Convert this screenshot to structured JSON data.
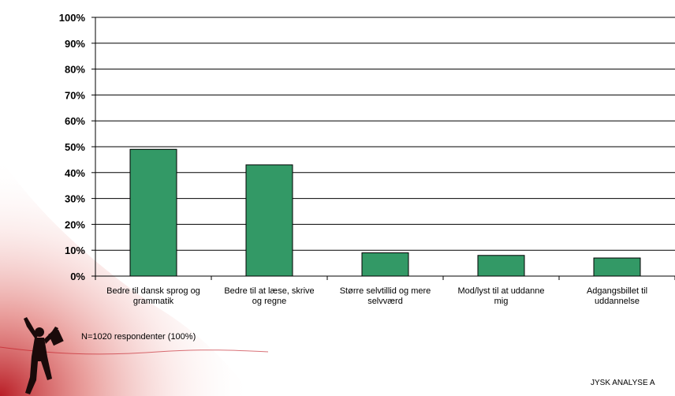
{
  "chart_data": {
    "type": "bar",
    "categories": [
      [
        "Bedre til dansk sprog og",
        "grammatik"
      ],
      [
        "Bedre til at læse, skrive",
        "og regne"
      ],
      [
        "Større selvtillid og mere",
        "selvværd"
      ],
      [
        "Mod/lyst til at uddanne",
        "mig"
      ],
      [
        "Adgangsbillet til",
        "uddannelse"
      ]
    ],
    "values": [
      49,
      43,
      9,
      8,
      7
    ],
    "ylim": [
      0,
      100
    ],
    "ytick_step": 10,
    "ytick_suffix": "%",
    "grid": true,
    "bar_color": "#339966",
    "title": "",
    "xlabel": "",
    "ylabel": ""
  },
  "note": "N=1020 respondenter (100%)",
  "footer": "JYSK ANALYSE A",
  "colors": {
    "bar": "#339966",
    "accent": "#c0141e"
  }
}
